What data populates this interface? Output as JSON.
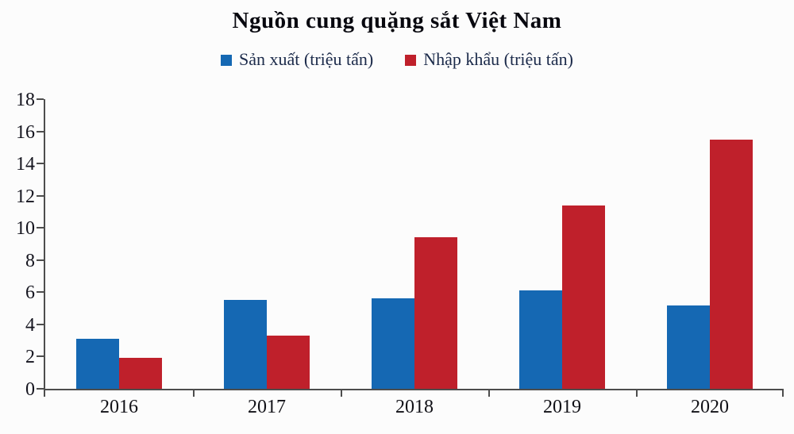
{
  "chart_data": {
    "type": "bar",
    "title": "Nguồn cung quặng sắt Việt Nam",
    "categories": [
      "2016",
      "2017",
      "2018",
      "2019",
      "2020"
    ],
    "series": [
      {
        "name": "Sản xuất (triệu tấn)",
        "color": "#1568b3",
        "values": [
          3.1,
          5.5,
          5.6,
          6.1,
          5.2
        ]
      },
      {
        "name": "Nhập khẩu (triệu tấn)",
        "color": "#bf202b",
        "values": [
          1.9,
          3.3,
          9.4,
          11.4,
          15.5
        ]
      }
    ],
    "xlabel": "",
    "ylabel": "",
    "ylim": [
      0,
      18
    ],
    "ytick_step": 2,
    "grid": false,
    "legend_position": "top",
    "axis_color": "#4d4d4d"
  }
}
